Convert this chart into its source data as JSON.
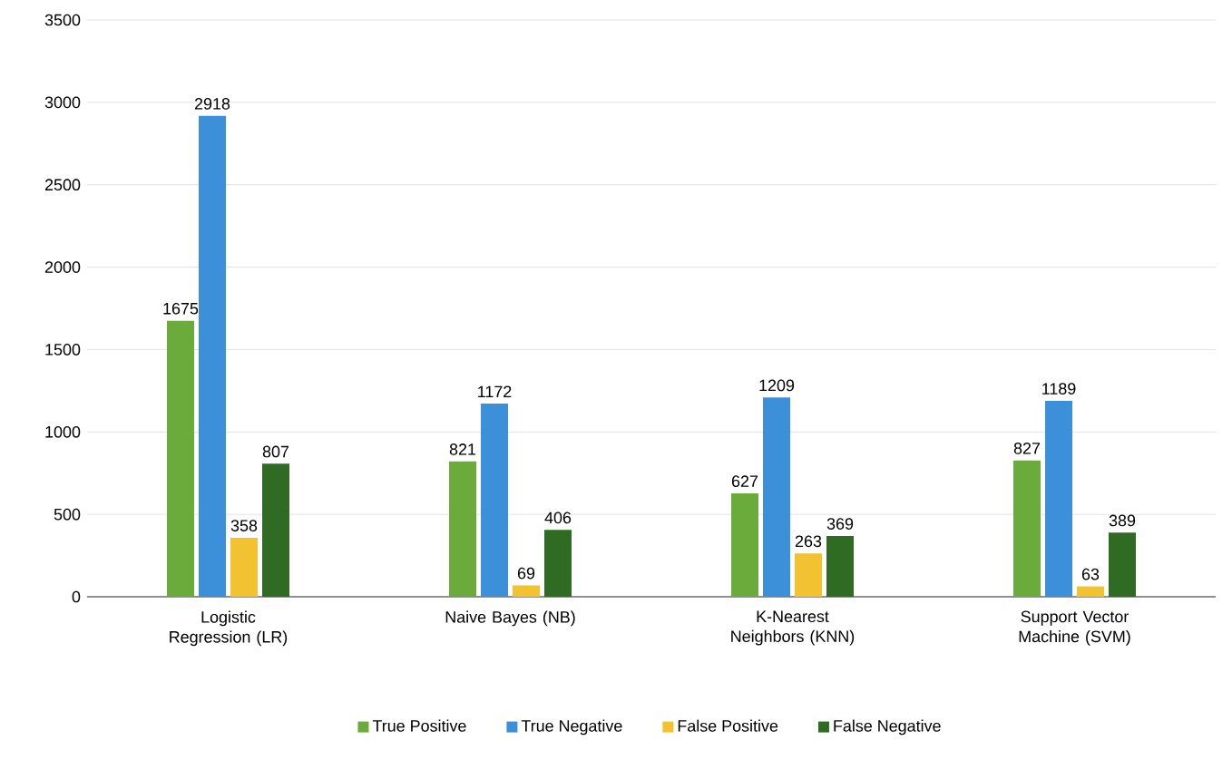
{
  "chart_data": {
    "type": "bar",
    "categories": [
      "Logistic Regression (LR)",
      "Naive Bayes (NB)",
      "K-Nearest Neighbors (KNN)",
      "Support Vector Machine (SVM)"
    ],
    "series": [
      {
        "name": "True Positive",
        "color": "#6aab3c",
        "values": [
          1675,
          821,
          627,
          827
        ]
      },
      {
        "name": "True Negative",
        "color": "#3c8fd9",
        "values": [
          2918,
          1172,
          1209,
          1189
        ]
      },
      {
        "name": "False Positive",
        "color": "#f2c230",
        "values": [
          358,
          69,
          263,
          63
        ]
      },
      {
        "name": "False Negative",
        "color": "#2f6b22",
        "values": [
          807,
          406,
          369,
          389
        ]
      }
    ],
    "ylim": [
      0,
      3500
    ],
    "yticks": [
      0,
      500,
      1000,
      1500,
      2000,
      2500,
      3000,
      3500
    ],
    "grid": "y",
    "legend": "bottom",
    "data_labels": true
  }
}
